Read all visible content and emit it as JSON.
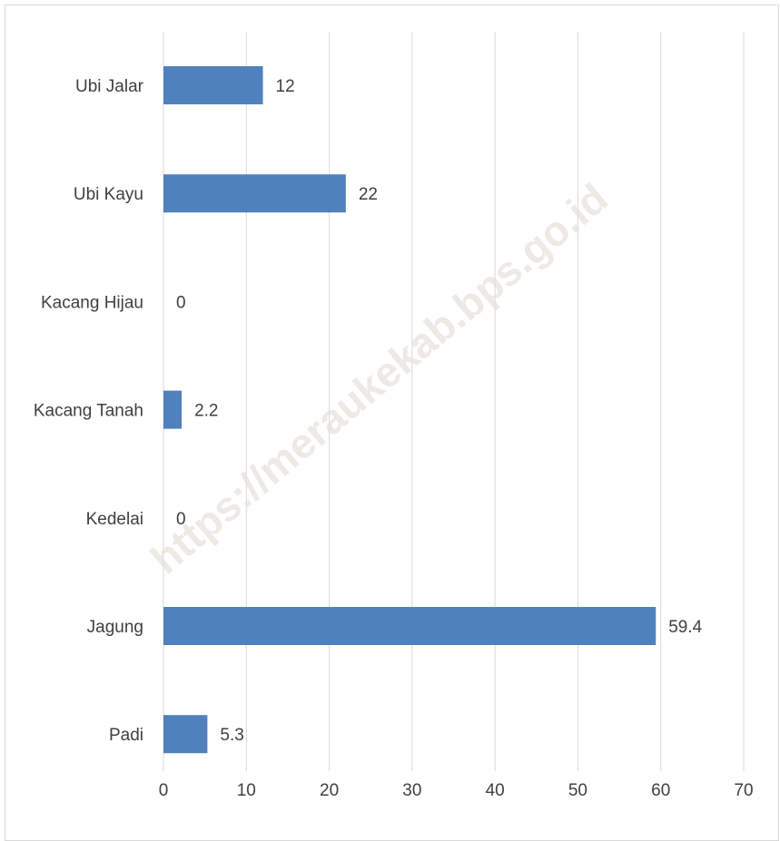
{
  "chart_data": {
    "type": "bar",
    "orientation": "horizontal",
    "watermark": "https://meraukekab.bps.go.id",
    "categories": [
      "Ubi Jalar",
      "Ubi Kayu",
      "Kacang Hijau",
      "Kacang Tanah",
      "Kedelai",
      "Jagung",
      "Padi"
    ],
    "values": [
      12,
      22,
      0,
      2.2,
      0,
      59.4,
      5.3
    ],
    "color": "#4f81bd",
    "xlim": [
      0,
      70
    ],
    "xticks": [
      0,
      10,
      20,
      30,
      40,
      50,
      60,
      70
    ],
    "grid": true
  }
}
